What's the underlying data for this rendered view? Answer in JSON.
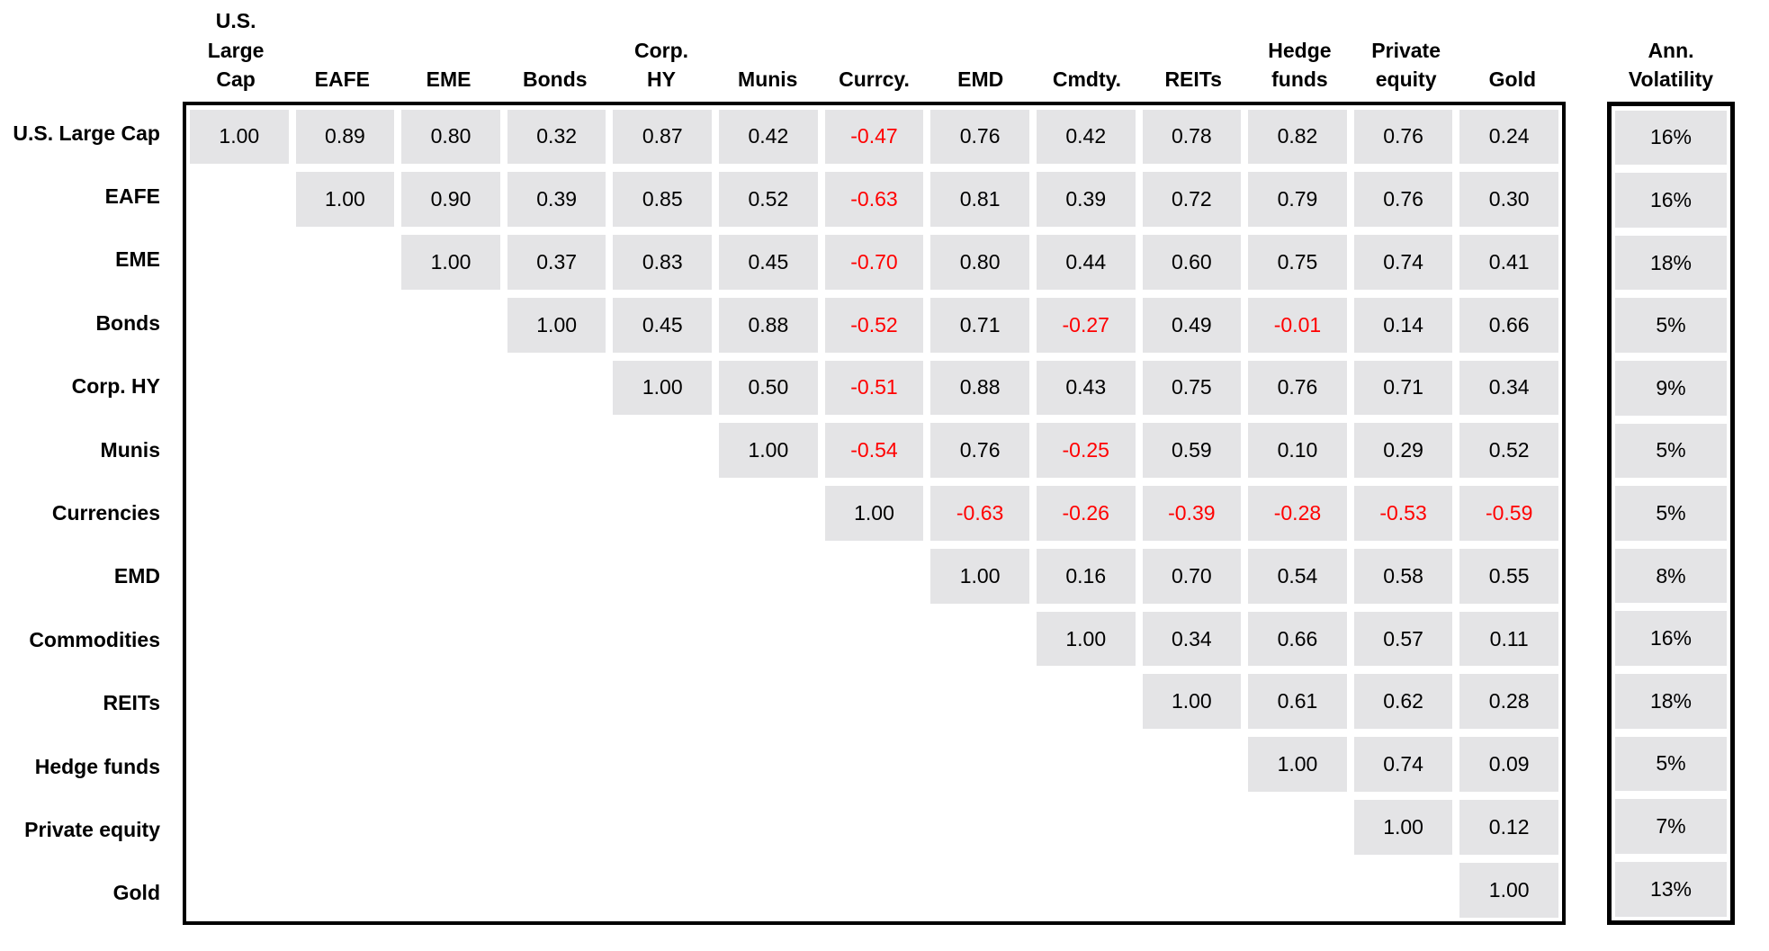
{
  "colors": {
    "cell_background": "#e4e4e6",
    "negative_value_text": "#ff0000",
    "positive_value_text": "#000000",
    "box_border": "#000000",
    "page_background": "#ffffff"
  },
  "chart_data": {
    "type": "heatmap",
    "description_visible": "Upper-triangular correlation matrix of asset classes with annualized volatility column",
    "row_labels": [
      "U.S. Large Cap",
      "EAFE",
      "EME",
      "Bonds",
      "Corp. HY",
      "Munis",
      "Currencies",
      "EMD",
      "Commodities",
      "REITs",
      "Hedge funds",
      "Private equity",
      "Gold"
    ],
    "column_labels": [
      "U.S. Large Cap",
      "EAFE",
      "EME",
      "Bonds",
      "Corp. HY",
      "Munis",
      "Currcy.",
      "EMD",
      "Cmdty.",
      "REITs",
      "Hedge funds",
      "Private equity",
      "Gold"
    ],
    "column_labels_display": [
      "U.S.\nLarge\nCap",
      "EAFE",
      "EME",
      "Bonds",
      "Corp.\nHY",
      "Munis",
      "Currcy.",
      "EMD",
      "Cmdty.",
      "REITs",
      "Hedge\nfunds",
      "Private\nequity",
      "Gold"
    ],
    "matrix": [
      [
        1.0,
        0.89,
        0.8,
        0.32,
        0.87,
        0.42,
        -0.47,
        0.76,
        0.42,
        0.78,
        0.82,
        0.76,
        0.24
      ],
      [
        null,
        1.0,
        0.9,
        0.39,
        0.85,
        0.52,
        -0.63,
        0.81,
        0.39,
        0.72,
        0.79,
        0.76,
        0.3
      ],
      [
        null,
        null,
        1.0,
        0.37,
        0.83,
        0.45,
        -0.7,
        0.8,
        0.44,
        0.6,
        0.75,
        0.74,
        0.41
      ],
      [
        null,
        null,
        null,
        1.0,
        0.45,
        0.88,
        -0.52,
        0.71,
        -0.27,
        0.49,
        -0.01,
        0.14,
        0.66
      ],
      [
        null,
        null,
        null,
        null,
        1.0,
        0.5,
        -0.51,
        0.88,
        0.43,
        0.75,
        0.76,
        0.71,
        0.34
      ],
      [
        null,
        null,
        null,
        null,
        null,
        1.0,
        -0.54,
        0.76,
        -0.25,
        0.59,
        0.1,
        0.29,
        0.52
      ],
      [
        null,
        null,
        null,
        null,
        null,
        null,
        1.0,
        -0.63,
        -0.26,
        -0.39,
        -0.28,
        -0.53,
        -0.59
      ],
      [
        null,
        null,
        null,
        null,
        null,
        null,
        null,
        1.0,
        0.16,
        0.7,
        0.54,
        0.58,
        0.55
      ],
      [
        null,
        null,
        null,
        null,
        null,
        null,
        null,
        null,
        1.0,
        0.34,
        0.66,
        0.57,
        0.11
      ],
      [
        null,
        null,
        null,
        null,
        null,
        null,
        null,
        null,
        null,
        1.0,
        0.61,
        0.62,
        0.28
      ],
      [
        null,
        null,
        null,
        null,
        null,
        null,
        null,
        null,
        null,
        null,
        1.0,
        0.74,
        0.09
      ],
      [
        null,
        null,
        null,
        null,
        null,
        null,
        null,
        null,
        null,
        null,
        null,
        1.0,
        0.12
      ],
      [
        null,
        null,
        null,
        null,
        null,
        null,
        null,
        null,
        null,
        null,
        null,
        null,
        1.0
      ]
    ],
    "value_format": "two_decimals",
    "negative_values_shown_in_red": true,
    "volatility_column": {
      "label": "Ann. Volatility",
      "label_display": "Ann.\nVolatility",
      "values_pct": [
        16,
        16,
        18,
        5,
        9,
        5,
        5,
        8,
        16,
        18,
        5,
        7,
        13
      ]
    }
  }
}
